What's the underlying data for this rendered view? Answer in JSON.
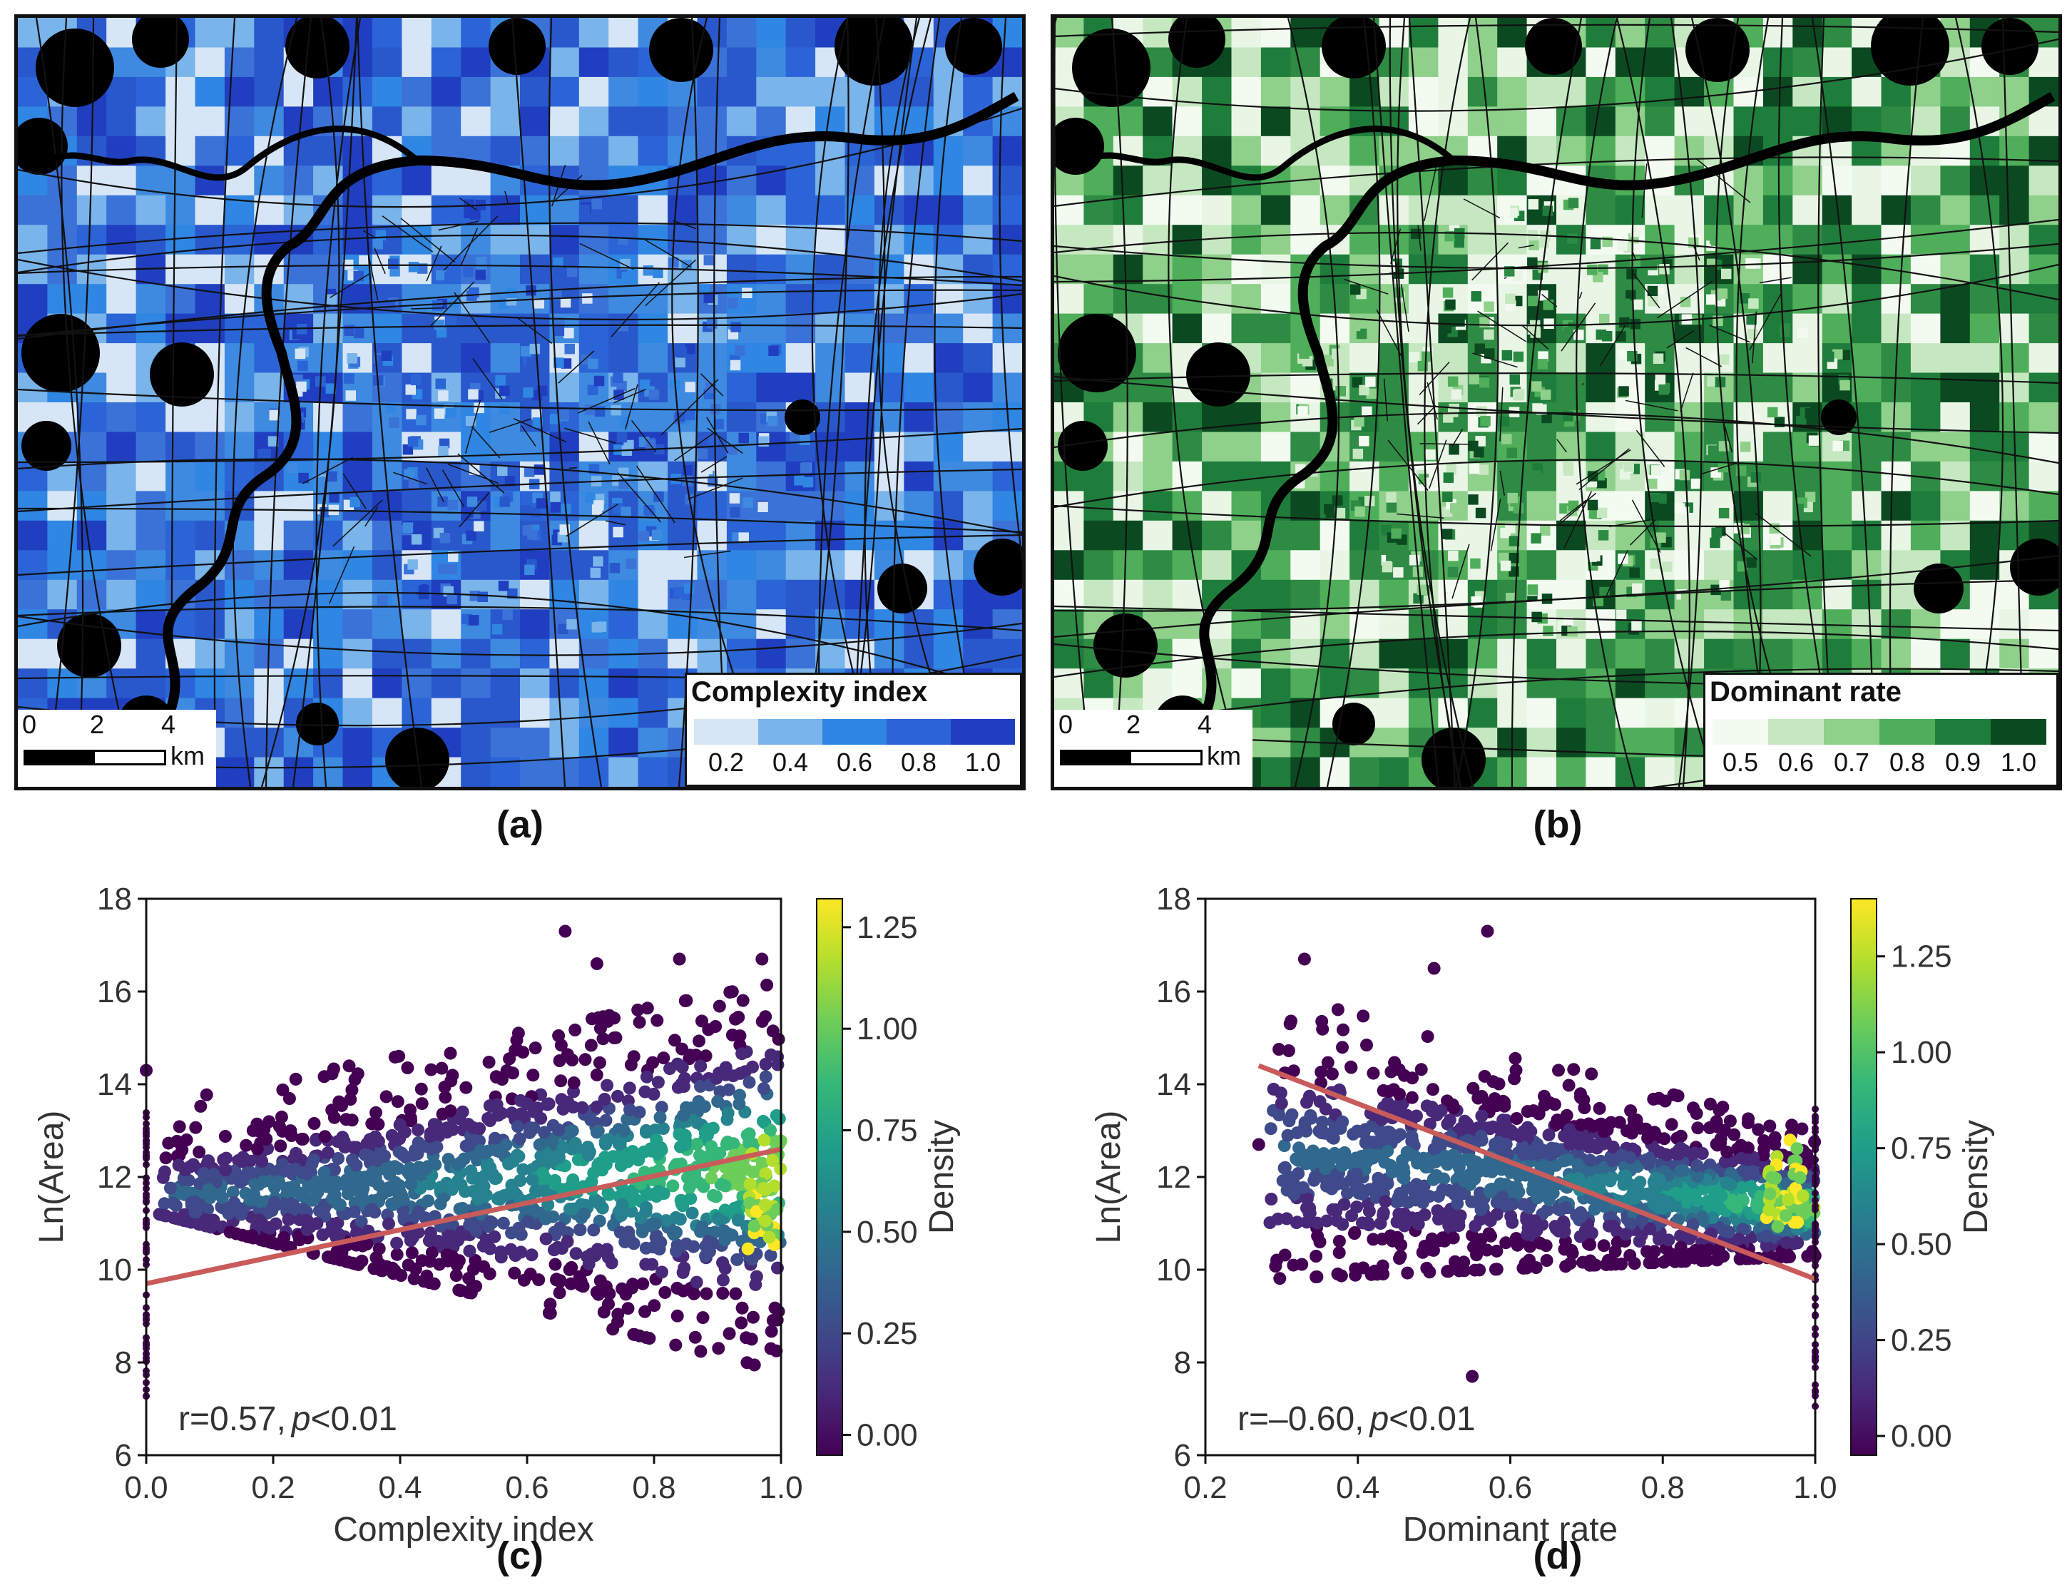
{
  "panels": {
    "a": {
      "caption": "(a)",
      "legend_title": "Complexity index",
      "legend_ticks": [
        "0.2",
        "0.4",
        "0.6",
        "0.8",
        "1.0"
      ],
      "legend_colors": [
        "#d6e6f7",
        "#79b4ea",
        "#2f86e3",
        "#2a64d6",
        "#1f3fc0"
      ],
      "scale_ticks": [
        "0",
        "2",
        "4"
      ],
      "scale_unit": "km"
    },
    "b": {
      "caption": "(b)",
      "legend_title": "Dominant rate",
      "legend_ticks": [
        "0.5",
        "0.6",
        "0.7",
        "0.8",
        "0.9",
        "1.0"
      ],
      "legend_colors": [
        "#f3fbf1",
        "#c6e8c1",
        "#8fd08b",
        "#4fae5a",
        "#1f7d3b",
        "#0b4a21"
      ],
      "scale_ticks": [
        "0",
        "2",
        "4"
      ],
      "scale_unit": "km"
    },
    "c": {
      "caption": "(c)"
    },
    "d": {
      "caption": "(d)"
    }
  },
  "chart_data": [
    {
      "id": "c",
      "type": "scatter",
      "xlabel": "Complexity index",
      "ylabel": "Ln(Area)",
      "xlim": [
        0.0,
        1.0
      ],
      "ylim": [
        6,
        18
      ],
      "xticks": [
        "0.0",
        "0.2",
        "0.4",
        "0.6",
        "0.8",
        "1.0"
      ],
      "yticks": [
        "6",
        "8",
        "10",
        "12",
        "14",
        "16",
        "18"
      ],
      "colorbar_label": "Density",
      "colorbar_ticks": [
        "0.00",
        "0.25",
        "0.50",
        "0.75",
        "1.00",
        "1.25"
      ],
      "colorbar_range": [
        -0.05,
        1.32
      ],
      "fit_line": {
        "x": [
          0.0,
          1.0
        ],
        "y": [
          9.7,
          12.6
        ]
      },
      "annotation": {
        "prefix": "r=0.57,",
        "p": "p",
        "suffix": "<0.01"
      },
      "cloud": {
        "x_min": 0.02,
        "x_max": 1.0,
        "y_low_start": 11.2,
        "y_low_end": 7.8,
        "y_high_start": 13.6,
        "y_high_end": 16.2,
        "center_start": 11.6,
        "center_end": 12.2
      },
      "outliers": [
        [
          0.66,
          17.3
        ],
        [
          0.0,
          14.3
        ],
        [
          0.71,
          16.6
        ],
        [
          0.84,
          16.7
        ],
        [
          0.97,
          16.7
        ]
      ]
    },
    {
      "id": "d",
      "type": "scatter",
      "xlabel": "Dominant rate",
      "ylabel": "Ln(Area)",
      "xlim": [
        0.2,
        1.0
      ],
      "ylim": [
        6,
        18
      ],
      "xticks": [
        "0.2",
        "0.4",
        "0.6",
        "0.8",
        "1.0"
      ],
      "yticks": [
        "6",
        "8",
        "10",
        "12",
        "14",
        "16",
        "18"
      ],
      "colorbar_label": "Density",
      "colorbar_ticks": [
        "0.00",
        "0.25",
        "0.50",
        "0.75",
        "1.00",
        "1.25"
      ],
      "colorbar_range": [
        -0.05,
        1.4
      ],
      "fit_line": {
        "x": [
          0.27,
          1.0
        ],
        "y": [
          14.4,
          9.8
        ]
      },
      "annotation": {
        "prefix": "r=–0.60,",
        "p": "p",
        "suffix": "<0.01"
      },
      "cloud": {
        "x_min": 0.28,
        "x_max": 1.0,
        "y_low_start": 9.8,
        "y_low_end": 10.3,
        "y_high_start": 16.0,
        "y_high_end": 13.0,
        "center_start": 12.6,
        "center_end": 11.3
      },
      "outliers": [
        [
          0.57,
          17.3
        ],
        [
          0.27,
          12.7
        ],
        [
          0.33,
          16.7
        ],
        [
          0.5,
          16.5
        ],
        [
          0.55,
          7.7
        ]
      ]
    }
  ]
}
